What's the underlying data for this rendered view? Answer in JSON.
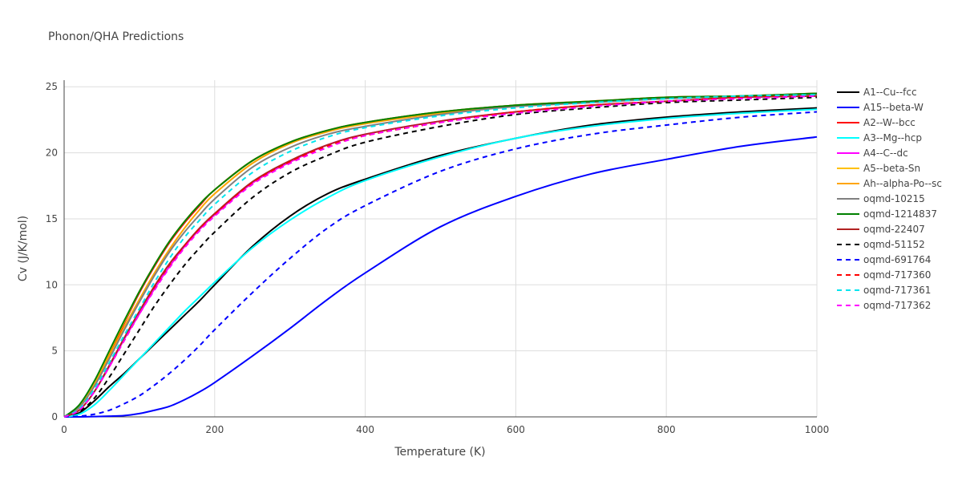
{
  "chart_data": {
    "type": "line",
    "title": "Phonon/QHA Predictions",
    "xlabel": "Temperature (K)",
    "ylabel": "Cv (J/K/mol)",
    "xlim": [
      0,
      1000
    ],
    "ylim": [
      0,
      25.5
    ],
    "xticks": [
      0,
      200,
      400,
      600,
      800,
      1000
    ],
    "yticks": [
      0,
      5,
      10,
      15,
      20,
      25
    ],
    "grid": true,
    "legend_position": "right",
    "x": [
      0,
      20,
      40,
      60,
      80,
      100,
      120,
      140,
      160,
      180,
      200,
      250,
      300,
      350,
      400,
      500,
      600,
      700,
      800,
      900,
      1000
    ],
    "series": [
      {
        "name": "A1--Cu--fcc",
        "color": "#000000",
        "dash": "solid",
        "values": [
          0,
          0.3,
          1.2,
          2.3,
          3.3,
          4.4,
          5.5,
          6.6,
          7.7,
          8.8,
          10.0,
          12.9,
          15.2,
          16.9,
          18.0,
          19.8,
          21.1,
          22.1,
          22.7,
          23.1,
          23.4
        ]
      },
      {
        "name": "A15--beta-W",
        "color": "#0000ff",
        "dash": "solid",
        "values": [
          0,
          0,
          0.02,
          0.05,
          0.1,
          0.25,
          0.5,
          0.8,
          1.3,
          1.9,
          2.6,
          4.6,
          6.7,
          8.9,
          10.9,
          14.4,
          16.7,
          18.4,
          19.5,
          20.5,
          21.2
        ]
      },
      {
        "name": "A2--W--bcc",
        "color": "#ff0000",
        "dash": "solid",
        "values": [
          0,
          0.8,
          2.5,
          4.7,
          7.1,
          9.4,
          11.4,
          13.2,
          14.7,
          16.0,
          17.2,
          19.4,
          20.8,
          21.7,
          22.3,
          23.1,
          23.6,
          23.9,
          24.2,
          24.3,
          24.5
        ]
      },
      {
        "name": "A3--Mg--hcp",
        "color": "#00ffff",
        "dash": "solid",
        "values": [
          0,
          0.2,
          0.9,
          2.0,
          3.2,
          4.4,
          5.6,
          6.8,
          8.0,
          9.1,
          10.2,
          12.8,
          14.9,
          16.6,
          17.9,
          19.7,
          21.1,
          22.0,
          22.6,
          23.0,
          23.3
        ]
      },
      {
        "name": "A4--C--dc",
        "color": "#ff00ff",
        "dash": "solid",
        "values": [
          0,
          0.5,
          1.9,
          3.8,
          5.9,
          7.8,
          9.7,
          11.4,
          12.9,
          14.2,
          15.3,
          17.7,
          19.3,
          20.6,
          21.4,
          22.4,
          23.1,
          23.6,
          23.9,
          24.2,
          24.3
        ]
      },
      {
        "name": "A5--beta-Sn",
        "color": "#ffc000",
        "dash": "solid",
        "values": [
          0,
          0.8,
          2.6,
          4.9,
          7.2,
          9.5,
          11.5,
          13.3,
          14.8,
          16.1,
          17.2,
          19.4,
          20.8,
          21.7,
          22.3,
          23.1,
          23.6,
          23.9,
          24.2,
          24.3,
          24.5
        ]
      },
      {
        "name": "Ah--alpha-Po--sc",
        "color": "#ffa500",
        "dash": "solid",
        "values": [
          0,
          0.7,
          2.4,
          4.6,
          6.8,
          8.9,
          10.9,
          12.7,
          14.3,
          15.7,
          16.9,
          19.2,
          20.7,
          21.6,
          22.2,
          23.0,
          23.6,
          23.9,
          24.1,
          24.3,
          24.4
        ]
      },
      {
        "name": "oqmd-10215",
        "color": "#808080",
        "dash": "solid",
        "values": [
          0,
          0.7,
          2.3,
          4.4,
          6.6,
          8.7,
          10.7,
          12.5,
          14.0,
          15.3,
          16.5,
          18.9,
          20.4,
          21.4,
          22.0,
          22.9,
          23.5,
          23.8,
          24.1,
          24.3,
          24.4
        ]
      },
      {
        "name": "oqmd-1214837",
        "color": "#008000",
        "dash": "solid",
        "values": [
          0,
          0.9,
          2.7,
          5.0,
          7.3,
          9.5,
          11.5,
          13.3,
          14.8,
          16.1,
          17.2,
          19.4,
          20.8,
          21.7,
          22.3,
          23.1,
          23.6,
          23.9,
          24.2,
          24.3,
          24.5
        ]
      },
      {
        "name": "oqmd-22407",
        "color": "#b22222",
        "dash": "solid",
        "values": [
          0,
          0.5,
          1.9,
          3.9,
          6.0,
          8.0,
          9.9,
          11.6,
          13.0,
          14.3,
          15.4,
          17.8,
          19.4,
          20.6,
          21.4,
          22.4,
          23.1,
          23.6,
          23.9,
          24.2,
          24.3
        ]
      },
      {
        "name": "oqmd-51152",
        "color": "#000000",
        "dash": "dash",
        "values": [
          0,
          0.4,
          1.4,
          3.0,
          4.8,
          6.6,
          8.4,
          10.0,
          11.5,
          12.8,
          14.0,
          16.6,
          18.5,
          19.8,
          20.8,
          22.0,
          22.9,
          23.4,
          23.8,
          24.0,
          24.2
        ]
      },
      {
        "name": "oqmd-691764",
        "color": "#0000ff",
        "dash": "dash",
        "values": [
          0,
          0.05,
          0.2,
          0.5,
          1.0,
          1.6,
          2.4,
          3.3,
          4.3,
          5.4,
          6.6,
          9.4,
          12.0,
          14.3,
          16.0,
          18.6,
          20.3,
          21.4,
          22.1,
          22.7,
          23.1
        ]
      },
      {
        "name": "oqmd-717360",
        "color": "#ff0000",
        "dash": "dash",
        "values": [
          0,
          0.5,
          1.9,
          3.8,
          5.8,
          7.8,
          9.7,
          11.4,
          12.9,
          14.2,
          15.3,
          17.7,
          19.3,
          20.5,
          21.3,
          22.3,
          23.1,
          23.6,
          23.9,
          24.2,
          24.3
        ]
      },
      {
        "name": "oqmd-717361",
        "color": "#00e5ee",
        "dash": "dash",
        "values": [
          0,
          0.6,
          2.1,
          4.1,
          6.2,
          8.2,
          10.2,
          12.0,
          13.6,
          14.9,
          16.1,
          18.5,
          20.1,
          21.2,
          21.9,
          22.8,
          23.4,
          23.8,
          24.1,
          24.3,
          24.4
        ]
      },
      {
        "name": "oqmd-717362",
        "color": "#ff00ff",
        "dash": "dash",
        "values": [
          0,
          0.5,
          1.9,
          3.8,
          5.8,
          7.8,
          9.6,
          11.3,
          12.8,
          14.1,
          15.2,
          17.6,
          19.2,
          20.4,
          21.3,
          22.3,
          23.0,
          23.5,
          23.9,
          24.1,
          24.3
        ]
      }
    ]
  }
}
